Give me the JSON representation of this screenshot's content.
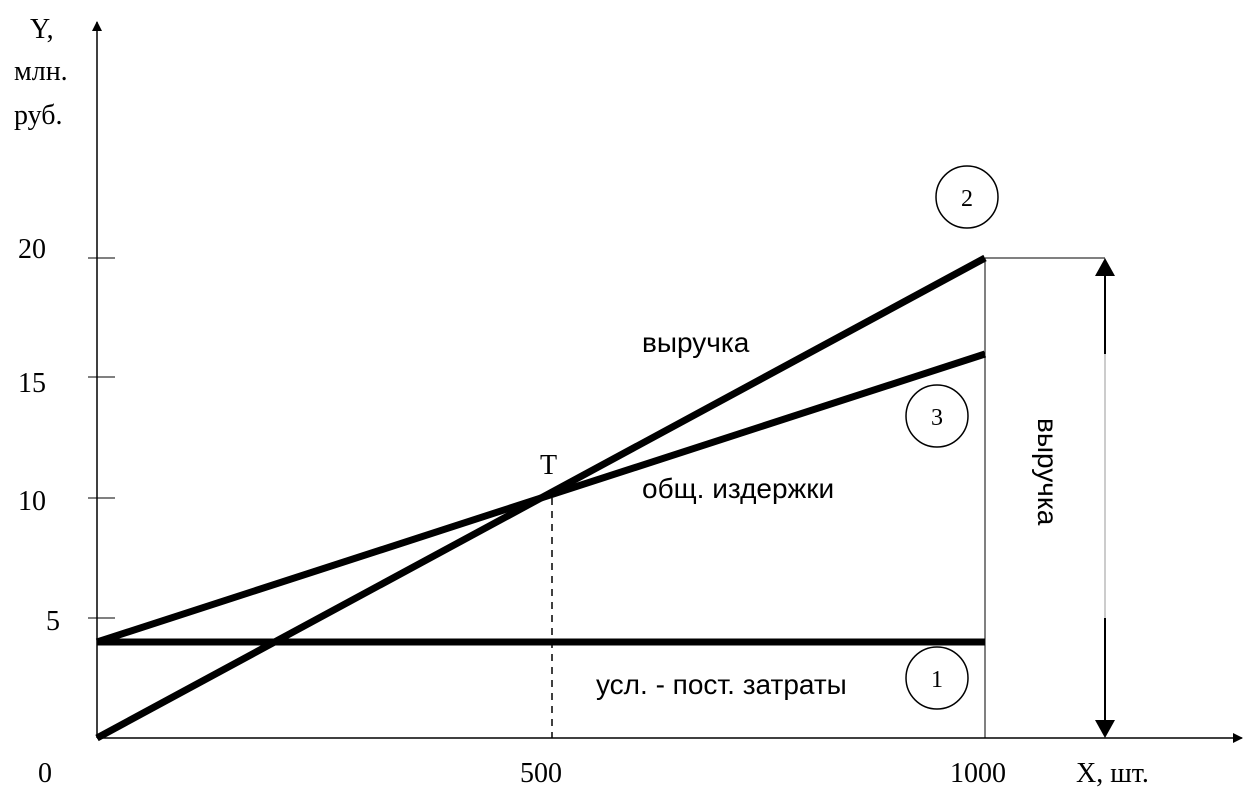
{
  "chart_data": {
    "type": "line",
    "ylabel_lines": [
      "Y,",
      "млн.",
      "руб."
    ],
    "xlabel": "X, шт.",
    "origin_label": "0",
    "x_ticks": [
      "500",
      "1000"
    ],
    "y_ticks": [
      "5",
      "10",
      "15",
      "20"
    ],
    "xlim": [
      0,
      1000
    ],
    "ylim": [
      0,
      20
    ],
    "series": [
      {
        "id": "revenue",
        "label": "выручка",
        "marker": "2",
        "x": [
          0,
          1000
        ],
        "y": [
          0,
          20
        ]
      },
      {
        "id": "total_costs",
        "label": "общ. издержки",
        "marker": "3",
        "x": [
          0,
          1000
        ],
        "y": [
          4,
          16
        ]
      },
      {
        "id": "fixed_costs",
        "label": "усл. - пост. затраты",
        "marker": "1",
        "x": [
          0,
          1000
        ],
        "y": [
          4,
          4
        ]
      }
    ],
    "break_even": {
      "label": "Т",
      "x": 500,
      "y": 10
    },
    "revenue_bracket": {
      "label": "выручка",
      "x": 1000,
      "y_from": 0,
      "y_to": 20
    },
    "grid": false
  }
}
